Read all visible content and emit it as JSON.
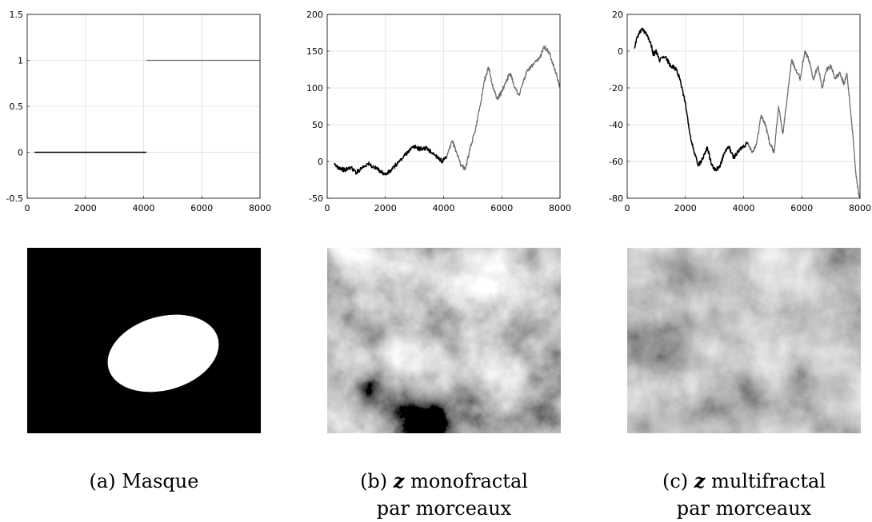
{
  "chart_data": [
    {
      "type": "line",
      "xlim": [
        0,
        8000
      ],
      "ylim": [
        -0.5,
        1.5
      ],
      "x_ticks": [
        "0",
        "2000",
        "4000",
        "6000",
        "8000"
      ],
      "y_ticks": [
        "1.5",
        "1",
        "0.5",
        "0",
        "-0.5"
      ],
      "grid": true,
      "series": [
        {
          "color": "#000000",
          "points": [
            [
              250,
              0
            ],
            [
              4096,
              0
            ]
          ]
        },
        {
          "color": "#6e6e6e",
          "points": [
            [
              4096,
              1
            ],
            [
              8000,
              1
            ]
          ]
        }
      ]
    },
    {
      "type": "line",
      "xlim": [
        0,
        8000
      ],
      "ylim": [
        -50,
        200
      ],
      "x_ticks": [
        "0",
        "2000",
        "4000",
        "6000",
        "8000"
      ],
      "y_ticks": [
        "200",
        "150",
        "100",
        "50",
        "0",
        "-50"
      ],
      "grid": true,
      "series": [
        {
          "color": "#000000",
          "points": [
            [
              250,
              -5
            ],
            [
              400,
              -8
            ],
            [
              600,
              -12
            ],
            [
              800,
              -8
            ],
            [
              1000,
              -15
            ],
            [
              1200,
              -8
            ],
            [
              1400,
              -3
            ],
            [
              1600,
              -8
            ],
            [
              1800,
              -12
            ],
            [
              2000,
              -18
            ],
            [
              2200,
              -12
            ],
            [
              2400,
              -3
            ],
            [
              2600,
              5
            ],
            [
              2800,
              15
            ],
            [
              3000,
              20
            ],
            [
              3200,
              17
            ],
            [
              3400,
              18
            ],
            [
              3600,
              12
            ],
            [
              3800,
              6
            ],
            [
              3950,
              0
            ],
            [
              4100,
              5
            ]
          ]
        },
        {
          "color": "#6e6e6e",
          "points": [
            [
              4100,
              5
            ],
            [
              4300,
              28
            ],
            [
              4450,
              12
            ],
            [
              4600,
              -5
            ],
            [
              4750,
              -10
            ],
            [
              4900,
              15
            ],
            [
              5100,
              45
            ],
            [
              5250,
              75
            ],
            [
              5400,
              110
            ],
            [
              5550,
              128
            ],
            [
              5700,
              100
            ],
            [
              5850,
              85
            ],
            [
              6000,
              95
            ],
            [
              6150,
              110
            ],
            [
              6300,
              120
            ],
            [
              6450,
              100
            ],
            [
              6600,
              90
            ],
            [
              6750,
              110
            ],
            [
              6900,
              125
            ],
            [
              7100,
              132
            ],
            [
              7300,
              140
            ],
            [
              7450,
              157
            ],
            [
              7600,
              150
            ],
            [
              7750,
              135
            ],
            [
              7900,
              115
            ],
            [
              8000,
              100
            ]
          ]
        }
      ]
    },
    {
      "type": "line",
      "xlim": [
        0,
        8000
      ],
      "ylim": [
        -80,
        20
      ],
      "x_ticks": [
        "0",
        "2000",
        "4000",
        "6000",
        "8000"
      ],
      "y_ticks": [
        "20",
        "0",
        "-20",
        "-40",
        "-60",
        "-80"
      ],
      "grid": true,
      "series": [
        {
          "color": "#000000",
          "points": [
            [
              250,
              2
            ],
            [
              350,
              8
            ],
            [
              500,
              12
            ],
            [
              650,
              10
            ],
            [
              800,
              5
            ],
            [
              900,
              -2
            ],
            [
              1000,
              0
            ],
            [
              1100,
              -5
            ],
            [
              1300,
              -3
            ],
            [
              1500,
              -8
            ],
            [
              1700,
              -10
            ],
            [
              1850,
              -18
            ],
            [
              2000,
              -28
            ],
            [
              2150,
              -45
            ],
            [
              2300,
              -55
            ],
            [
              2450,
              -62
            ],
            [
              2600,
              -58
            ],
            [
              2750,
              -52
            ],
            [
              2900,
              -62
            ],
            [
              3050,
              -65
            ],
            [
              3200,
              -62
            ],
            [
              3350,
              -55
            ],
            [
              3500,
              -52
            ],
            [
              3650,
              -58
            ],
            [
              3800,
              -55
            ],
            [
              3950,
              -52
            ],
            [
              4150,
              -50
            ]
          ]
        },
        {
          "color": "#6e6e6e",
          "points": [
            [
              4150,
              -50
            ],
            [
              4300,
              -55
            ],
            [
              4450,
              -50
            ],
            [
              4600,
              -35
            ],
            [
              4750,
              -40
            ],
            [
              4900,
              -50
            ],
            [
              5050,
              -55
            ],
            [
              5200,
              -30
            ],
            [
              5350,
              -45
            ],
            [
              5500,
              -25
            ],
            [
              5650,
              -5
            ],
            [
              5800,
              -10
            ],
            [
              5950,
              -15
            ],
            [
              6100,
              0
            ],
            [
              6250,
              -5
            ],
            [
              6400,
              -15
            ],
            [
              6550,
              -8
            ],
            [
              6700,
              -20
            ],
            [
              6850,
              -10
            ],
            [
              7000,
              -8
            ],
            [
              7150,
              -15
            ],
            [
              7300,
              -12
            ],
            [
              7450,
              -18
            ],
            [
              7550,
              -12
            ],
            [
              7650,
              -28
            ],
            [
              7750,
              -45
            ],
            [
              7850,
              -65
            ],
            [
              7950,
              -78
            ],
            [
              8000,
              -80
            ]
          ]
        }
      ]
    }
  ],
  "captions": [
    {
      "label": "(a)",
      "rest": "Masque",
      "line2": ""
    },
    {
      "label": "(b)",
      "var": "z",
      "rest": "monofractal",
      "line2": "par morceaux"
    },
    {
      "label": "(c)",
      "var": "z",
      "rest": "multifractal",
      "line2": "par morceaux"
    }
  ],
  "colors": {
    "grid": "#e6e6e6",
    "mask_bg": "#000000",
    "mask_fg": "#ffffff",
    "segment_a": "#000000",
    "segment_b": "#6e6e6e"
  }
}
